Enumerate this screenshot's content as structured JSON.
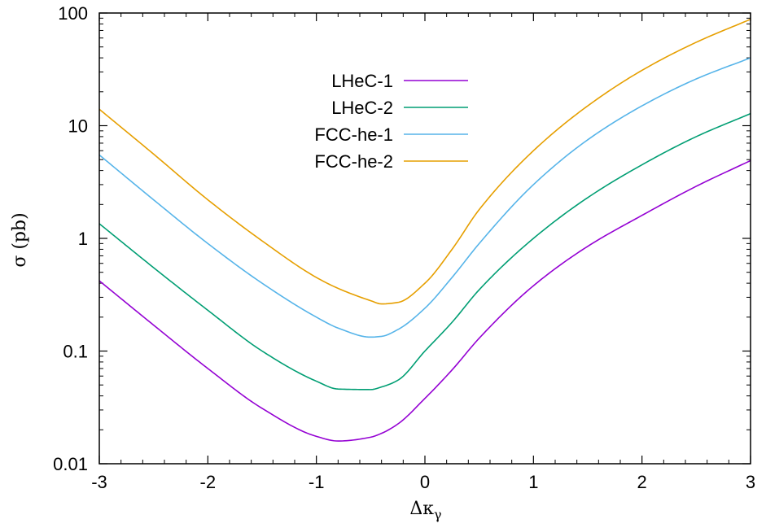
{
  "chart_data": {
    "type": "line",
    "title": "",
    "xlabel": "Δκ",
    "xlabel_subscript": "γ",
    "ylabel": "σ (pb)",
    "x_scale": "linear",
    "y_scale": "log",
    "xlim": [
      -3,
      3
    ],
    "ylim": [
      0.01,
      100
    ],
    "x_ticks": [
      -3,
      -2,
      -1,
      0,
      1,
      2,
      3
    ],
    "x_tick_labels": [
      "-3",
      "-2",
      "-1",
      "0",
      "1",
      "2",
      "3"
    ],
    "y_ticks": [
      0.01,
      0.1,
      1,
      10,
      100
    ],
    "y_tick_labels": [
      "0.01",
      "0.1",
      "1",
      "10",
      "100"
    ],
    "grid": false,
    "legend_position": "top-center",
    "x": [
      -3.0,
      -2.5,
      -2.0,
      -1.5,
      -1.0,
      -0.8,
      -0.5,
      -0.4,
      -0.25,
      0.0,
      0.25,
      0.5,
      1.0,
      1.5,
      2.0,
      2.5,
      3.0
    ],
    "series": [
      {
        "name": "LHeC-1",
        "color": "#9400d3",
        "values": [
          0.42,
          0.17,
          0.07,
          0.031,
          0.0175,
          0.0159,
          0.0172,
          0.0186,
          0.0225,
          0.038,
          0.068,
          0.13,
          0.38,
          0.85,
          1.6,
          2.9,
          4.9
        ]
      },
      {
        "name": "LHeC-2",
        "color": "#009e73",
        "values": [
          1.35,
          0.55,
          0.23,
          0.1,
          0.054,
          0.046,
          0.0455,
          0.048,
          0.055,
          0.1,
          0.18,
          0.35,
          1.0,
          2.3,
          4.5,
          8.0,
          12.8
        ]
      },
      {
        "name": "FCC-he-1",
        "color": "#56b4e9",
        "values": [
          5.5,
          2.2,
          0.9,
          0.4,
          0.2,
          0.16,
          0.133,
          0.135,
          0.155,
          0.24,
          0.45,
          0.9,
          3.0,
          7.5,
          15.0,
          26.0,
          40.0
        ]
      },
      {
        "name": "FCC-he-2",
        "color": "#e69f00",
        "values": [
          14.0,
          5.6,
          2.2,
          0.95,
          0.45,
          0.36,
          0.28,
          0.262,
          0.27,
          0.4,
          0.8,
          1.8,
          6.0,
          15.0,
          31.0,
          55.0,
          88.0
        ]
      }
    ]
  }
}
